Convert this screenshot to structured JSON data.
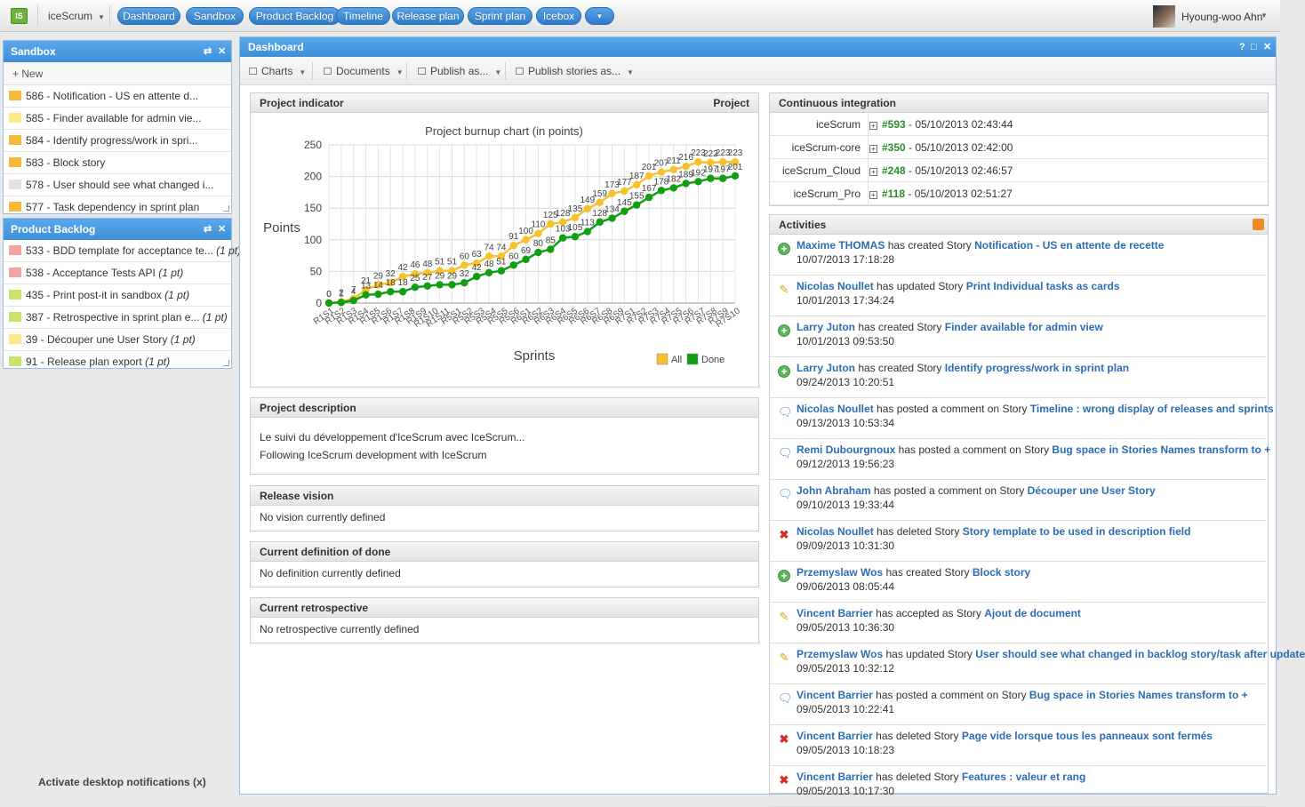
{
  "topbar": {
    "logo": "IS",
    "app_name": "iceScrum",
    "nav": [
      "Dashboard",
      "Sandbox",
      "Product Backlog",
      "Timeline",
      "Release plan",
      "Sprint plan",
      "Icebox"
    ],
    "more": "▾",
    "user_name": "Hyoung-woo Ahn"
  },
  "sandbox": {
    "title": "Sandbox",
    "new_label": "New",
    "items": [
      {
        "label": "586 - Notification - US en attente d...",
        "color": "#f7b93c"
      },
      {
        "label": "585 - Finder available for admin vie...",
        "color": "#fbe98a"
      },
      {
        "label": "584 - Identify progress/work in spri...",
        "color": "#f7b93c"
      },
      {
        "label": "583 - Block story",
        "color": "#f7b93c"
      },
      {
        "label": "578 - User should see what changed i...",
        "color": "#e2e2e2"
      },
      {
        "label": "577 - Task dependency in sprint plan",
        "color": "#f7b93c"
      }
    ]
  },
  "product_backlog": {
    "title": "Product Backlog",
    "items": [
      {
        "label": "533 - BDD template for acceptance te...",
        "pts": "(1 pt)",
        "color": "#f4a3a3"
      },
      {
        "label": "538 - Acceptance Tests API",
        "pts": "(1 pt)",
        "color": "#f4a3a3"
      },
      {
        "label": "435 - Print post-it in sandbox",
        "pts": "(1 pt)",
        "color": "#c9e36b"
      },
      {
        "label": "387 - Retrospective in sprint plan e...",
        "pts": "(1 pt)",
        "color": "#c9e36b"
      },
      {
        "label": "39 - Découper une User Story",
        "pts": "(1 pt)",
        "color": "#fbe98a"
      },
      {
        "label": "91 - Release plan export",
        "pts": "(1 pt)",
        "color": "#c9e36b"
      }
    ]
  },
  "notifications_link": "Activate desktop notifications (x)",
  "dashboard": {
    "title": "Dashboard",
    "toolbar": [
      "Charts",
      "Documents",
      "Publish as...",
      "Publish stories as..."
    ]
  },
  "project_indicator": {
    "title": "Project indicator",
    "right": "Project"
  },
  "chart_data": {
    "type": "line",
    "title": "Project burnup chart (in points)",
    "xlabel": "Sprints",
    "ylabel": "Points",
    "ylim": [
      0,
      250
    ],
    "yticks": [
      "0",
      "50",
      "100",
      "150",
      "200",
      "250"
    ],
    "x_tick_labels": [
      "R1S1",
      "R1S2",
      "R1S3",
      "R1S4",
      "R1S5",
      "R1S6",
      "R1S7",
      "R1S8",
      "R1S9",
      "R1S10",
      "R1S11",
      "R5S1",
      "R5S2",
      "R5S3",
      "R5S4",
      "R5S5",
      "R5S6",
      "R6S1",
      "R6S2",
      "R6S3",
      "R6S4",
      "R6S5",
      "R6S6",
      "R6S7",
      "R6S8",
      "R6S9",
      "R7S1",
      "R7S2",
      "R7S3",
      "R7S4",
      "R7S5",
      "R7S6",
      "R7S7",
      "R7S8",
      "R7S9",
      "R7S10"
    ],
    "series": [
      {
        "name": "All",
        "color": "#f6c12b",
        "values": [
          0,
          2,
          7,
          21,
          29,
          32,
          42,
          46,
          48,
          51,
          51,
          60,
          63,
          74,
          74,
          91,
          100,
          110,
          125,
          128,
          135,
          149,
          159,
          173,
          177,
          187,
          201,
          207,
          211,
          216,
          223,
          222,
          223,
          223
        ]
      },
      {
        "name": "Done",
        "color": "#129e12",
        "values": [
          0,
          1,
          4,
          13,
          14,
          18,
          18,
          25,
          27,
          29,
          29,
          32,
          42,
          48,
          51,
          60,
          69,
          80,
          85,
          103,
          105,
          113,
          128,
          134,
          145,
          155,
          167,
          178,
          182,
          189,
          192,
          197,
          197,
          201
        ]
      }
    ],
    "legend": "bottom-right",
    "grid": true
  },
  "project_description": {
    "title": "Project description",
    "lines": [
      "Le suivi du développement d'IceScrum avec IceScrum...",
      "Following IceScrum development with IceScrum"
    ]
  },
  "release_vision": {
    "title": "Release vision",
    "text": "No vision currently defined"
  },
  "definition_of_done": {
    "title": "Current definition of done",
    "text": "No definition currently defined"
  },
  "retrospective": {
    "title": "Current retrospective",
    "text": "No retrospective currently defined"
  },
  "ci": {
    "title": "Continuous integration",
    "rows": [
      {
        "name": "iceScrum",
        "build": "#593",
        "date": " - 05/10/2013 02:43:44"
      },
      {
        "name": "iceScrum-core",
        "build": "#350",
        "date": " - 05/10/2013 02:42:00"
      },
      {
        "name": "iceScrum_Cloud",
        "build": "#248",
        "date": " - 05/10/2013 02:46:57"
      },
      {
        "name": "iceScrum_Pro",
        "build": "#118",
        "date": " - 05/10/2013 02:51:27"
      }
    ]
  },
  "activities": {
    "title": "Activities",
    "items": [
      {
        "icon": "add",
        "who": "Maxime THOMAS",
        "action": " has created Story ",
        "story": "Notification - US en attente de recette",
        "date": "10/07/2013 17:18:28"
      },
      {
        "icon": "update",
        "who": "Nicolas Noullet",
        "action": " has updated Story ",
        "story": "Print Individual tasks as cards",
        "date": "10/01/2013 17:34:24"
      },
      {
        "icon": "add",
        "who": "Larry Juton",
        "action": " has created Story ",
        "story": "Finder available for admin view",
        "date": "10/01/2013 09:53:50"
      },
      {
        "icon": "add",
        "who": "Larry Juton",
        "action": " has created Story ",
        "story": "Identify progress/work in sprint plan",
        "date": "09/24/2013 10:20:51"
      },
      {
        "icon": "comment",
        "who": "Nicolas Noullet",
        "action": " has posted a comment on Story ",
        "story": "Timeline : wrong display of releases and sprints",
        "date": "09/13/2013 10:53:34"
      },
      {
        "icon": "comment",
        "who": "Remi Dubourgnoux",
        "action": " has posted a comment on Story ",
        "story": "Bug space in Stories Names transform to +",
        "date": "09/12/2013 19:56:23"
      },
      {
        "icon": "comment",
        "who": "John Abraham",
        "action": " has posted a comment on Story ",
        "story": "Découper une User Story",
        "date": "09/10/2013 19:33:44"
      },
      {
        "icon": "delete",
        "who": "Nicolas Noullet",
        "action": " has deleted Story ",
        "story": "Story template to be used in description field",
        "date": "09/09/2013 10:31:30"
      },
      {
        "icon": "add",
        "who": "Przemyslaw Wos",
        "action": " has created Story ",
        "story": "Block story",
        "date": "09/06/2013 08:05:44"
      },
      {
        "icon": "update",
        "who": "Vincent Barrier",
        "action": " has accepted as Story ",
        "story": "Ajout de document",
        "date": "09/05/2013 10:36:30"
      },
      {
        "icon": "update",
        "who": "Przemyslaw Wos",
        "action": " has updated Story ",
        "story": "User should see what changed in backlog story/task after update",
        "date": "09/05/2013 10:32:12"
      },
      {
        "icon": "comment",
        "who": "Vincent Barrier",
        "action": " has posted a comment on Story ",
        "story": "Bug space in Stories Names transform to +",
        "date": "09/05/2013 10:22:41"
      },
      {
        "icon": "delete",
        "who": "Vincent Barrier",
        "action": " has deleted Story ",
        "story": "Page vide lorsque tous les panneaux sont fermés",
        "date": "09/05/2013 10:18:23"
      },
      {
        "icon": "delete",
        "who": "Vincent Barrier",
        "action": " has deleted Story ",
        "story": "Features : valeur et rang",
        "date": "09/05/2013 10:17:30"
      }
    ]
  }
}
